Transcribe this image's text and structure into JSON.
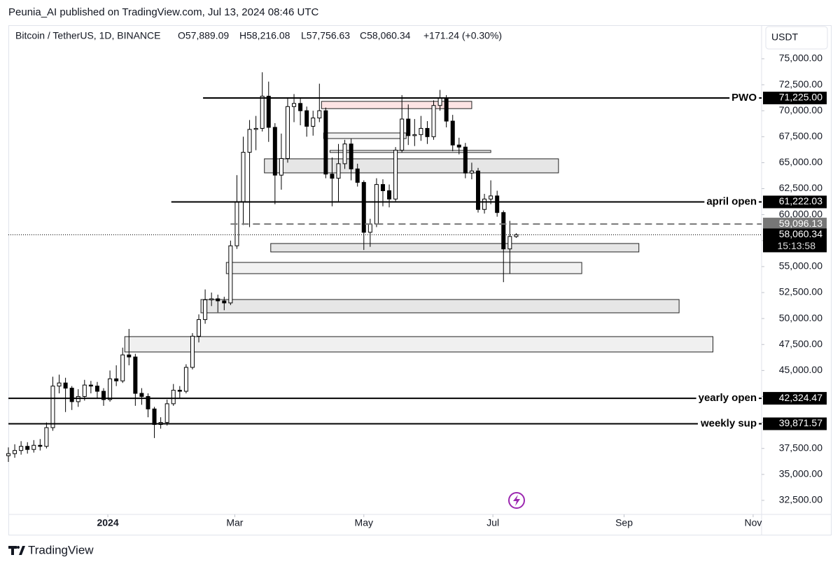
{
  "header": {
    "published": "Peunia_AI published on TradingView.com, Jul 13, 2024 08:46 UTC",
    "symbol": "Bitcoin / TetherUS, 1D, BINANCE",
    "open": "O57,889.09",
    "high": "H58,216.08",
    "low": "L57,756.63",
    "close": "C58,060.34",
    "change": "+171.24 (+0.30%)",
    "currency": "USDT"
  },
  "footer": {
    "brand": "TradingView"
  },
  "chart_data": {
    "type": "candlestick",
    "xlim": [
      0,
      356
    ],
    "ylim": [
      31150,
      78230
    ],
    "xticks": [
      {
        "value": 47,
        "label": "2024"
      },
      {
        "value": 107,
        "label": "Mar"
      },
      {
        "value": 168,
        "label": "May"
      },
      {
        "value": 229,
        "label": "Jul"
      },
      {
        "value": 291,
        "label": "Sep"
      },
      {
        "value": 352,
        "label": "Nov"
      }
    ],
    "yticks": [
      {
        "value": 75000,
        "label": "75,000.00"
      },
      {
        "value": 72500,
        "label": "72,500.00"
      },
      {
        "value": 70000,
        "label": "70,000.00"
      },
      {
        "value": 67500,
        "label": "67,500.00"
      },
      {
        "value": 65000,
        "label": "65,000.00"
      },
      {
        "value": 62500,
        "label": "62,500.00"
      },
      {
        "value": 60000,
        "label": "60,000.00"
      },
      {
        "value": 57500,
        "label": "57,500.00"
      },
      {
        "value": 55000,
        "label": "55,000.00"
      },
      {
        "value": 52500,
        "label": "52,500.00"
      },
      {
        "value": 50000,
        "label": "50,000.00"
      },
      {
        "value": 47500,
        "label": "47,500.00"
      },
      {
        "value": 45000,
        "label": "45,000.00"
      },
      {
        "value": 42500,
        "label": "42,500.00"
      },
      {
        "value": 40000,
        "label": "40,000.00"
      },
      {
        "value": 37500,
        "label": "37,500.00"
      },
      {
        "value": 35000,
        "label": "35,000.00"
      },
      {
        "value": 32500,
        "label": "32,500.00"
      }
    ],
    "up_color": "#ffffff",
    "down_color": "#000000",
    "candles": [
      [
        0,
        36800,
        37600,
        36200,
        37000
      ],
      [
        3,
        37000,
        37900,
        36600,
        37300
      ],
      [
        6,
        37300,
        38200,
        36900,
        37700
      ],
      [
        9,
        37700,
        38100,
        37000,
        37400
      ],
      [
        12,
        37400,
        38300,
        37100,
        37800
      ],
      [
        15,
        37800,
        38400,
        37300,
        37700
      ],
      [
        18,
        37700,
        40000,
        37500,
        39500
      ],
      [
        21,
        39500,
        44400,
        39200,
        43500
      ],
      [
        24,
        43500,
        44600,
        42800,
        43800
      ],
      [
        27,
        43800,
        44300,
        41000,
        43300
      ],
      [
        30,
        43300,
        43500,
        41200,
        42000
      ],
      [
        33,
        42000,
        43200,
        41500,
        42500
      ],
      [
        36,
        42500,
        44100,
        42100,
        43600
      ],
      [
        39,
        43600,
        44000,
        42800,
        43500
      ],
      [
        42,
        43500,
        43900,
        42300,
        43000
      ],
      [
        45,
        43000,
        43300,
        41600,
        42200
      ],
      [
        48,
        42200,
        45000,
        42000,
        44200
      ],
      [
        51,
        44200,
        45500,
        43500,
        44000
      ],
      [
        54,
        44000,
        47200,
        43800,
        46500
      ],
      [
        57,
        46500,
        49000,
        45500,
        46300
      ],
      [
        60,
        46300,
        46600,
        41600,
        42800
      ],
      [
        63,
        42800,
        43300,
        41700,
        42500
      ],
      [
        66,
        42500,
        42800,
        40500,
        41300
      ],
      [
        69,
        41300,
        41500,
        38500,
        39800
      ],
      [
        72,
        39800,
        40500,
        39400,
        40000
      ],
      [
        75,
        40000,
        42200,
        39700,
        41800
      ],
      [
        78,
        41800,
        43700,
        41600,
        43100
      ],
      [
        81,
        43100,
        43500,
        42300,
        43000
      ],
      [
        84,
        43000,
        45600,
        42800,
        45300
      ],
      [
        87,
        45300,
        48600,
        45100,
        48300
      ],
      [
        90,
        48300,
        50400,
        47700,
        49900
      ],
      [
        93,
        49900,
        52800,
        49500,
        51800
      ],
      [
        96,
        51800,
        52500,
        51200,
        51900
      ],
      [
        99,
        51900,
        52300,
        50600,
        51700
      ],
      [
        102,
        51700,
        52100,
        50800,
        51500
      ],
      [
        105,
        51500,
        57500,
        51300,
        57000
      ],
      [
        108,
        57000,
        63800,
        56700,
        61200
      ],
      [
        111,
        61200,
        67500,
        59000,
        66000
      ],
      [
        114,
        66000,
        69100,
        58800,
        68200
      ],
      [
        117,
        68200,
        69500,
        66200,
        68300
      ],
      [
        120,
        68300,
        73700,
        68000,
        71400
      ],
      [
        123,
        71400,
        72800,
        67000,
        68400
      ],
      [
        126,
        68400,
        68800,
        61000,
        63800
      ],
      [
        129,
        63800,
        67800,
        62400,
        65400
      ],
      [
        132,
        65400,
        71300,
        65000,
        70400
      ],
      [
        135,
        70400,
        71600,
        68900,
        70700
      ],
      [
        138,
        70700,
        71300,
        68600,
        70000
      ],
      [
        141,
        70000,
        70400,
        67500,
        68500
      ],
      [
        144,
        68500,
        70000,
        67600,
        69300
      ],
      [
        147,
        69300,
        72600,
        68900,
        70000
      ],
      [
        150,
        70000,
        70300,
        63500,
        63900
      ],
      [
        153,
        63900,
        65500,
        60800,
        63500
      ],
      [
        156,
        63500,
        66800,
        61200,
        64900
      ],
      [
        159,
        64900,
        67200,
        64400,
        66800
      ],
      [
        162,
        66800,
        67300,
        63300,
        64400
      ],
      [
        165,
        64400,
        64900,
        62700,
        63100
      ],
      [
        168,
        63100,
        63300,
        56600,
        58300
      ],
      [
        171,
        58300,
        59600,
        56900,
        59100
      ],
      [
        174,
        59100,
        63500,
        58800,
        62900
      ],
      [
        177,
        62900,
        63400,
        60800,
        62300
      ],
      [
        180,
        62300,
        62900,
        60700,
        61500
      ],
      [
        183,
        61500,
        66500,
        61300,
        66200
      ],
      [
        186,
        66200,
        71500,
        66000,
        69200
      ],
      [
        189,
        69200,
        70600,
        66700,
        67600
      ],
      [
        192,
        67600,
        69200,
        66600,
        67700
      ],
      [
        195,
        67700,
        69500,
        67100,
        68300
      ],
      [
        198,
        68300,
        69000,
        66800,
        67500
      ],
      [
        201,
        67500,
        71000,
        67200,
        70500
      ],
      [
        204,
        70500,
        72000,
        70000,
        71200
      ],
      [
        207,
        71200,
        71500,
        68400,
        69000
      ],
      [
        210,
        69000,
        69600,
        66100,
        66700
      ],
      [
        213,
        66700,
        67400,
        65800,
        66500
      ],
      [
        216,
        66500,
        66900,
        63500,
        64000
      ],
      [
        219,
        64000,
        65000,
        63400,
        64200
      ],
      [
        222,
        64200,
        64500,
        60200,
        60500
      ],
      [
        225,
        60500,
        62000,
        60100,
        61500
      ],
      [
        228,
        61500,
        63300,
        61000,
        61800
      ],
      [
        231,
        61800,
        62300,
        59800,
        60200
      ],
      [
        234,
        60200,
        60400,
        53500,
        56700
      ],
      [
        237,
        56700,
        59400,
        54300,
        57900
      ],
      [
        240,
        57889.09,
        58216.08,
        57756.63,
        58060.34
      ]
    ],
    "levels": [
      {
        "name": "PWO",
        "value": 71225,
        "label": "71,225.00",
        "start": 92
      },
      {
        "name": "april open",
        "value": 61222.03,
        "label": "61,222.03",
        "start": 77
      },
      {
        "name": "yearly open",
        "value": 42324.47,
        "label": "42,324.47",
        "start": 0
      },
      {
        "name": "weekly sup",
        "value": 39871.57,
        "label": "39,871.57",
        "start": 0
      }
    ],
    "dashed_level": {
      "value": 59096.13,
      "label": "59,096.13",
      "start": 105
    },
    "last_price": {
      "value": 58060.34,
      "label": "58,060.34",
      "countdown": "15:13:58"
    },
    "zones": [
      {
        "x": [
          148,
          219
        ],
        "y": [
          70900,
          70200
        ],
        "color": "#fde3e3"
      },
      {
        "x": [
          149,
          188
        ],
        "y": [
          67860,
          67320
        ],
        "color": "#f2f2f2"
      },
      {
        "x": [
          152,
          228
        ],
        "y": [
          66180,
          65980
        ],
        "color": "#f2f2f2"
      },
      {
        "x": [
          121,
          260
        ],
        "y": [
          65370,
          64020
        ],
        "color": "#e6e6e6"
      },
      {
        "x": [
          124,
          298
        ],
        "y": [
          57220,
          56410
        ],
        "color": "#e6e6e6"
      },
      {
        "x": [
          103,
          271
        ],
        "y": [
          55400,
          54320
        ],
        "color": "#f2f2f2"
      },
      {
        "x": [
          91,
          317
        ],
        "y": [
          51830,
          50550
        ],
        "color": "#e6e6e6"
      },
      {
        "x": [
          55,
          333
        ],
        "y": [
          48260,
          46780
        ],
        "color": "#f0f0f0"
      }
    ]
  }
}
